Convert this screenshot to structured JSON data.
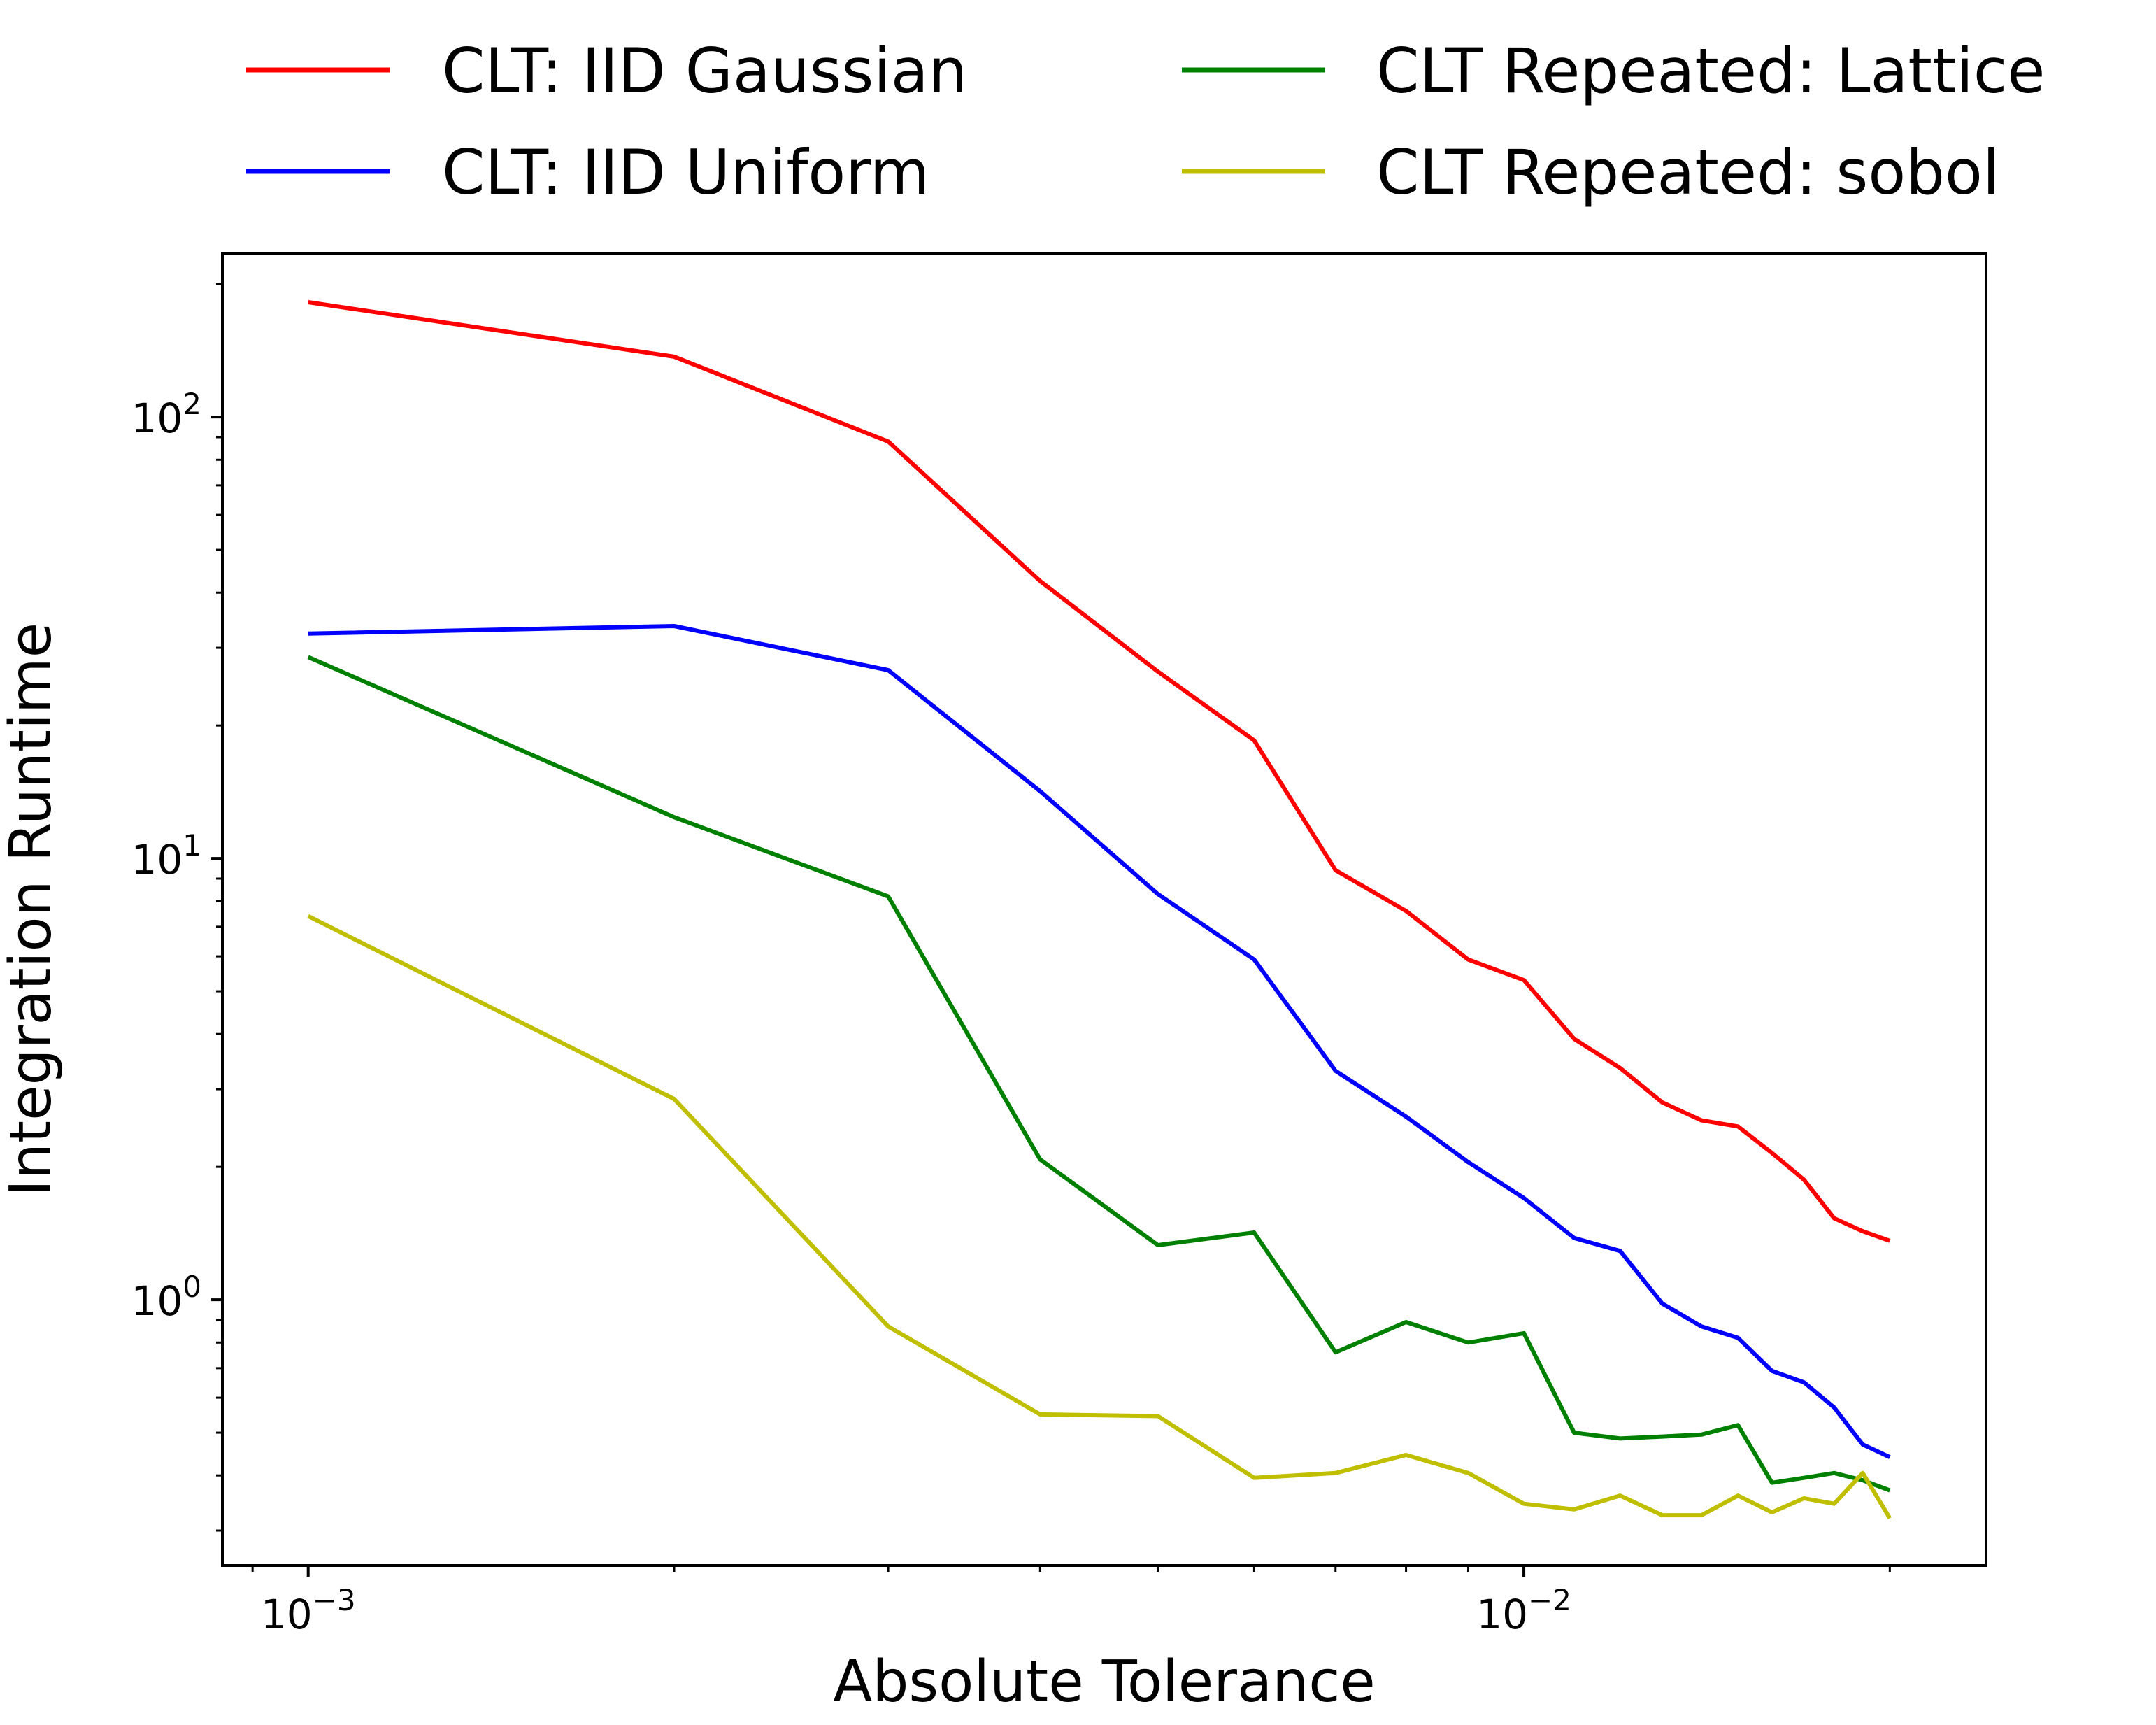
{
  "chart_data": {
    "type": "line",
    "xlabel": "Absolute Tolerance",
    "ylabel": "Integration Runtime",
    "xscale": "log",
    "yscale": "log",
    "xlim": [
      0.00085,
      0.024
    ],
    "ylim": [
      0.25,
      235
    ],
    "x_ticks": [
      {
        "value": 0.001,
        "base": "10",
        "exp": "−3"
      },
      {
        "value": 0.01,
        "base": "10",
        "exp": "−2"
      }
    ],
    "y_ticks": [
      {
        "value": 1,
        "base": "10",
        "exp": "0"
      },
      {
        "value": 10,
        "base": "10",
        "exp": "1"
      },
      {
        "value": 100,
        "base": "10",
        "exp": "2"
      }
    ],
    "legend_position": "top, above plot",
    "grid": false,
    "x": [
      0.001,
      0.002,
      0.003,
      0.004,
      0.005,
      0.006,
      0.007,
      0.008,
      0.009,
      0.01,
      0.011,
      0.012,
      0.013,
      0.014,
      0.015,
      0.016,
      0.017,
      0.018,
      0.019,
      0.02
    ],
    "series": [
      {
        "name": "CLT: IID Gaussian",
        "color": "#ff0000",
        "values": [
          182,
          137,
          88,
          42.5,
          26.5,
          18.5,
          9.4,
          7.6,
          5.9,
          5.3,
          3.9,
          3.35,
          2.8,
          2.55,
          2.47,
          2.15,
          1.87,
          1.53,
          1.43,
          1.36
        ]
      },
      {
        "name": "CLT: IID Uniform",
        "color": "#0000ff",
        "values": [
          32.3,
          33.6,
          26.7,
          14.2,
          8.3,
          5.9,
          3.3,
          2.6,
          2.05,
          1.7,
          1.38,
          1.29,
          0.98,
          0.87,
          0.82,
          0.69,
          0.65,
          0.57,
          0.47,
          0.44
        ]
      },
      {
        "name": "CLT Repeated: Lattice",
        "color": "#008000",
        "values": [
          28.6,
          12.4,
          8.2,
          2.08,
          1.33,
          1.42,
          0.76,
          0.89,
          0.8,
          0.84,
          0.5,
          0.485,
          0.49,
          0.495,
          0.52,
          0.385,
          0.395,
          0.405,
          0.39,
          0.37
        ]
      },
      {
        "name": "CLT Repeated: sobol",
        "color": "#bfbf00",
        "values": [
          7.4,
          2.85,
          0.87,
          0.55,
          0.545,
          0.395,
          0.405,
          0.445,
          0.405,
          0.345,
          0.335,
          0.36,
          0.325,
          0.325,
          0.36,
          0.33,
          0.355,
          0.345,
          0.405,
          0.32
        ]
      }
    ]
  }
}
